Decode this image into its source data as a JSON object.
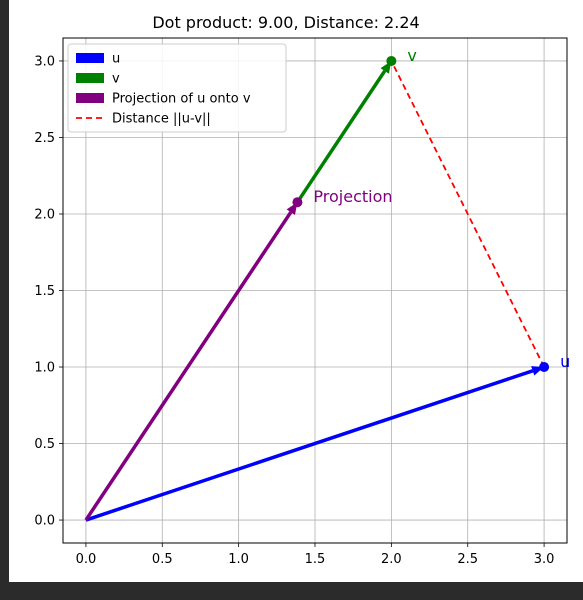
{
  "chart_data": {
    "type": "line",
    "title": "Dot product: 9.00, Distance: 2.24",
    "xlabel": "",
    "ylabel": "",
    "xlim": [
      -0.15,
      3.15
    ],
    "ylim": [
      -0.15,
      3.15
    ],
    "xticks": [
      "0.0",
      "0.5",
      "1.0",
      "1.5",
      "2.0",
      "2.5",
      "3.0"
    ],
    "yticks": [
      "0.0",
      "0.5",
      "1.0",
      "1.5",
      "2.0",
      "2.5",
      "3.0"
    ],
    "xtick_values": [
      0,
      0.5,
      1,
      1.5,
      2,
      2.5,
      3
    ],
    "ytick_values": [
      0,
      0.5,
      1,
      1.5,
      2,
      2.5,
      3
    ],
    "grid": true,
    "legend_position": "top-left",
    "series": [
      {
        "name": "u",
        "kind": "arrow",
        "color": "#0000ff",
        "from": [
          0,
          0
        ],
        "to": [
          3,
          1
        ]
      },
      {
        "name": "v",
        "kind": "arrow",
        "color": "#008000",
        "from": [
          1.385,
          2.077
        ],
        "to": [
          2,
          3
        ]
      },
      {
        "name": "Projection of u onto v",
        "kind": "arrow",
        "color": "#800080",
        "from": [
          0,
          0
        ],
        "to": [
          1.385,
          2.077
        ]
      },
      {
        "name": "Distance ||u-v||",
        "kind": "dashed",
        "color": "#ff0000",
        "from": [
          3,
          1
        ],
        "to": [
          2,
          3
        ]
      }
    ],
    "points": [
      {
        "x": 3,
        "y": 1,
        "color": "#0000ff",
        "label": "u"
      },
      {
        "x": 2,
        "y": 3,
        "color": "#008000",
        "label": "v"
      },
      {
        "x": 1.385,
        "y": 2.077,
        "color": "#800080",
        "label": "Projection"
      }
    ]
  }
}
